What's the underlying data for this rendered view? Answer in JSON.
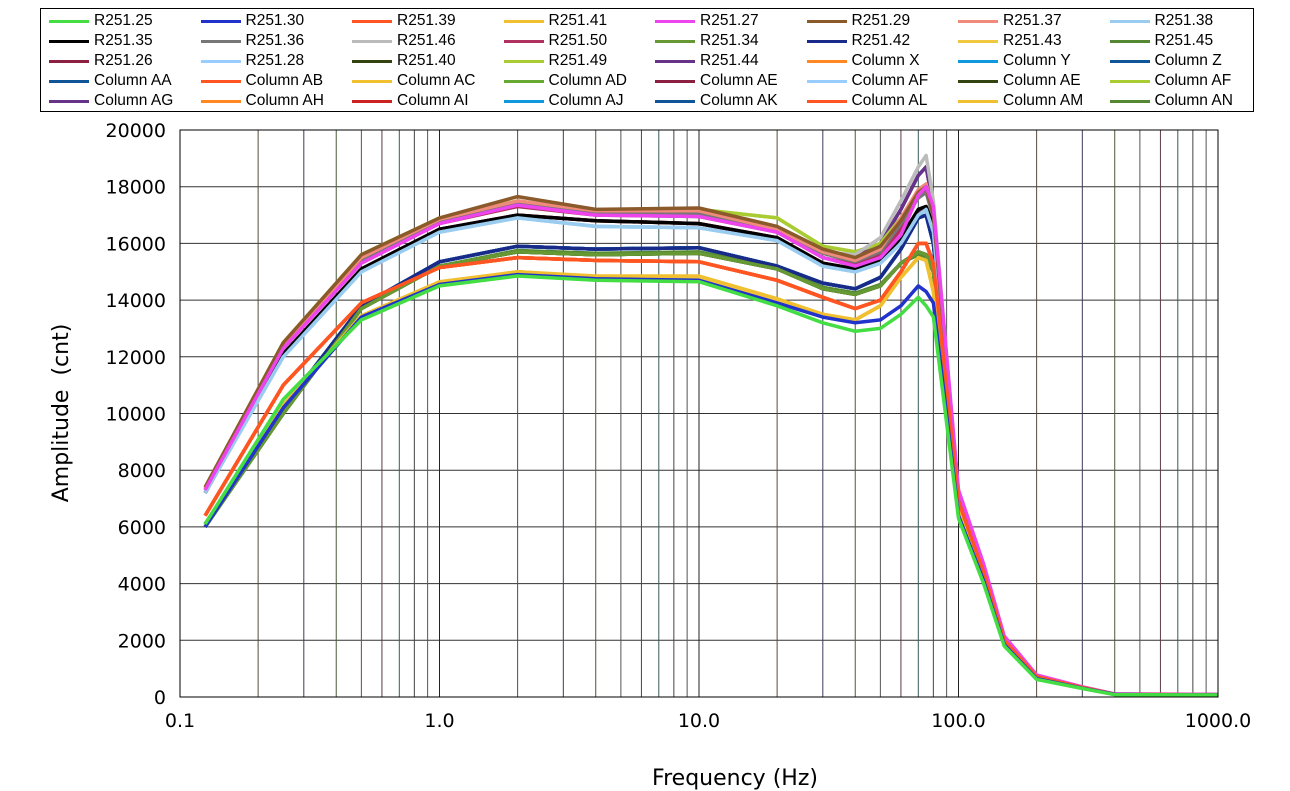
{
  "chart_data": {
    "type": "line",
    "title": "",
    "xlabel": "Frequency (Hz)",
    "ylabel": "Amplitude  (cnt)",
    "xscale": "log",
    "xlim": [
      0.1,
      1000
    ],
    "ylim": [
      0,
      20000
    ],
    "grid": true,
    "legend_position": "top",
    "xticks": [
      "0.1",
      "1.0",
      "10.0",
      "100.0",
      "1000.0"
    ],
    "xtick_values": [
      0.1,
      1,
      10,
      100,
      1000
    ],
    "yticks": [
      "0",
      "2000",
      "4000",
      "6000",
      "8000",
      "10000",
      "12000",
      "14000",
      "16000",
      "18000",
      "20000"
    ],
    "ytick_values": [
      0,
      2000,
      4000,
      6000,
      8000,
      10000,
      12000,
      14000,
      16000,
      18000,
      20000
    ],
    "x": [
      0.125,
      0.25,
      0.5,
      1,
      2,
      4,
      10,
      20,
      30,
      40,
      50,
      60,
      70,
      75,
      80,
      100,
      125,
      150,
      200,
      300,
      400,
      1000
    ],
    "series": [
      {
        "name": "R251.25",
        "color": "#44dd44",
        "values": [
          6100,
          10500,
          13300,
          14500,
          14850,
          14700,
          14650,
          13800,
          13200,
          12900,
          13000,
          13500,
          14100,
          13800,
          13400,
          6300,
          4000,
          1800,
          620,
          300,
          80,
          70
        ]
      },
      {
        "name": "R251.30",
        "color": "#2233cc",
        "values": [
          6000,
          10200,
          13400,
          14550,
          14900,
          14750,
          14700,
          13900,
          13400,
          13200,
          13300,
          13800,
          14500,
          14300,
          13900,
          6400,
          4100,
          1850,
          650,
          310,
          90,
          70
        ]
      },
      {
        "name": "R251.39",
        "color": "#ff5522",
        "values": [
          6400,
          11000,
          13900,
          15150,
          15500,
          15400,
          15350,
          14700,
          14100,
          13700,
          14000,
          15000,
          16000,
          16000,
          15300,
          6900,
          4400,
          2000,
          720,
          340,
          100,
          80
        ]
      },
      {
        "name": "R251.41",
        "color": "#f0c030",
        "values": [
          6100,
          10300,
          13450,
          14650,
          15000,
          14850,
          14850,
          14050,
          13500,
          13300,
          13800,
          14800,
          15500,
          15400,
          14300,
          6600,
          4200,
          1900,
          680,
          320,
          90,
          70
        ]
      },
      {
        "name": "R251.27",
        "color": "#ee44ee",
        "values": [
          7300,
          12300,
          15300,
          16700,
          17350,
          17000,
          16950,
          16400,
          15500,
          15200,
          15500,
          16300,
          17700,
          18000,
          17300,
          7300,
          4700,
          2150,
          780,
          360,
          110,
          90
        ]
      },
      {
        "name": "R251.29",
        "color": "#8b5a2b",
        "values": [
          7400,
          12500,
          15600,
          16900,
          17650,
          17200,
          17250,
          16600,
          15800,
          15500,
          15900,
          16800,
          17800,
          18000,
          17000,
          7000,
          4500,
          2100,
          750,
          350,
          100,
          80
        ]
      },
      {
        "name": "R251.37",
        "color": "#f08a7a",
        "values": [
          7350,
          12400,
          15500,
          16850,
          17500,
          17150,
          17150,
          16500,
          15700,
          15400,
          15800,
          16900,
          17900,
          18100,
          17100,
          7100,
          4550,
          2100,
          750,
          350,
          100,
          80
        ]
      },
      {
        "name": "R251.38",
        "color": "#99ccee",
        "values": [
          7200,
          12000,
          15000,
          16400,
          16900,
          16600,
          16550,
          16100,
          15200,
          15000,
          15300,
          16000,
          17000,
          17200,
          16400,
          7000,
          4500,
          2050,
          740,
          350,
          100,
          80
        ]
      },
      {
        "name": "R251.35",
        "color": "#000000",
        "values": [
          7200,
          12100,
          15100,
          16500,
          17000,
          16800,
          16700,
          16200,
          15300,
          15100,
          15400,
          16200,
          17200,
          17300,
          16600,
          6900,
          4400,
          2000,
          730,
          340,
          100,
          80
        ]
      },
      {
        "name": "R251.36",
        "color": "#777777",
        "values": [
          7300,
          12300,
          15400,
          16750,
          17400,
          17050,
          17050,
          16450,
          15650,
          15350,
          15700,
          16700,
          17600,
          17800,
          16900,
          7000,
          4500,
          2100,
          750,
          350,
          100,
          80
        ]
      },
      {
        "name": "R251.46",
        "color": "#bbbbbb",
        "values": [
          7300,
          12300,
          15400,
          16800,
          17400,
          17100,
          17100,
          16500,
          15700,
          15600,
          16200,
          17500,
          18700,
          19100,
          17500,
          7200,
          4600,
          2100,
          750,
          350,
          100,
          80
        ]
      },
      {
        "name": "R251.50",
        "color": "#b03060",
        "values": [
          7300,
          12300,
          15350,
          16700,
          17300,
          17000,
          16950,
          16400,
          15500,
          15250,
          15600,
          16500,
          17700,
          17900,
          17100,
          7200,
          4600,
          2100,
          760,
          350,
          100,
          80
        ]
      },
      {
        "name": "R251.34",
        "color": "#669933",
        "values": [
          6000,
          10000,
          13700,
          15200,
          15700,
          15600,
          15650,
          15100,
          14400,
          14200,
          14500,
          15300,
          15700,
          15600,
          15000,
          6800,
          4300,
          1950,
          700,
          330,
          100,
          80
        ]
      },
      {
        "name": "R251.42",
        "color": "#1a2a88",
        "values": [
          6100,
          10200,
          13800,
          15350,
          15900,
          15800,
          15850,
          15200,
          14600,
          14400,
          14800,
          15800,
          16900,
          17000,
          16000,
          6900,
          4400,
          2000,
          720,
          340,
          100,
          80
        ]
      },
      {
        "name": "R251.43",
        "color": "#f0c840",
        "values": [
          6100,
          10300,
          13400,
          14600,
          15000,
          14800,
          14800,
          14000,
          13500,
          13300,
          13800,
          14800,
          15500,
          15400,
          14300,
          6600,
          4200,
          1900,
          680,
          320,
          90,
          70
        ]
      },
      {
        "name": "R251.45",
        "color": "#558833",
        "values": [
          6000,
          10000,
          13700,
          15200,
          15750,
          15650,
          15700,
          15150,
          14450,
          14250,
          14550,
          15300,
          15600,
          15500,
          15000,
          6800,
          4300,
          1950,
          700,
          330,
          100,
          80
        ]
      },
      {
        "name": "R251.26",
        "color": "#8b2040",
        "values": [
          7200,
          12100,
          15100,
          16500,
          17000,
          16800,
          16700,
          16200,
          15300,
          15100,
          15400,
          16200,
          17100,
          17200,
          16500,
          6900,
          4400,
          2000,
          730,
          340,
          100,
          80
        ]
      },
      {
        "name": "R251.28",
        "color": "#99ccff",
        "values": [
          7200,
          12000,
          15000,
          16400,
          16900,
          16600,
          16550,
          16100,
          15200,
          15000,
          15300,
          16000,
          17000,
          17200,
          16400,
          7000,
          4500,
          2050,
          740,
          350,
          100,
          80
        ]
      },
      {
        "name": "R251.40",
        "color": "#334411",
        "values": [
          6000,
          10000,
          13700,
          15200,
          15700,
          15600,
          15650,
          15100,
          14400,
          14200,
          14500,
          15300,
          15700,
          15600,
          15000,
          6800,
          4300,
          1950,
          700,
          330,
          100,
          80
        ]
      },
      {
        "name": "R251.49",
        "color": "#aacc33",
        "values": [
          7400,
          12500,
          15600,
          16900,
          17500,
          17100,
          17200,
          16900,
          15900,
          15700,
          16000,
          16900,
          17700,
          17900,
          17000,
          7000,
          4500,
          2100,
          750,
          350,
          100,
          80
        ]
      },
      {
        "name": "R251.44",
        "color": "#663388",
        "values": [
          7300,
          12300,
          15400,
          16800,
          17400,
          17100,
          17100,
          16500,
          15700,
          15500,
          16000,
          17200,
          18400,
          18700,
          17300,
          7100,
          4550,
          2100,
          750,
          350,
          100,
          80
        ]
      },
      {
        "name": "Column X",
        "color": "#ff8822",
        "values": [
          6400,
          11000,
          13900,
          15150,
          15500,
          15400,
          15350,
          14700,
          14100,
          13700,
          14000,
          15000,
          16000,
          16000,
          15300,
          6900,
          4400,
          2000,
          720,
          340,
          100,
          80
        ]
      },
      {
        "name": "Column Y",
        "color": "#1199dd",
        "values": [
          6100,
          10200,
          13800,
          15350,
          15900,
          15800,
          15850,
          15200,
          14600,
          14400,
          14800,
          15800,
          16900,
          17000,
          16000,
          6900,
          4400,
          2000,
          720,
          340,
          100,
          80
        ]
      },
      {
        "name": "Column Z",
        "color": "#115599",
        "values": [
          6100,
          10200,
          13800,
          15350,
          15900,
          15800,
          15850,
          15200,
          14600,
          14400,
          14800,
          15800,
          16900,
          17000,
          16000,
          6900,
          4400,
          2000,
          720,
          340,
          100,
          80
        ]
      },
      {
        "name": "Column AA",
        "color": "#115599",
        "values": [
          6100,
          10200,
          13800,
          15350,
          15900,
          15800,
          15850,
          15200,
          14600,
          14400,
          14800,
          15800,
          16900,
          17000,
          16000,
          6900,
          4400,
          2000,
          720,
          340,
          100,
          80
        ]
      },
      {
        "name": "Column AB",
        "color": "#ff5522",
        "values": [
          6400,
          11000,
          13900,
          15150,
          15500,
          15400,
          15350,
          14700,
          14100,
          13700,
          14000,
          15000,
          16000,
          16000,
          15300,
          6900,
          4400,
          2000,
          720,
          340,
          100,
          80
        ]
      },
      {
        "name": "Column AC",
        "color": "#f0c030",
        "values": [
          6100,
          10300,
          13400,
          14600,
          15000,
          14800,
          14800,
          14000,
          13500,
          13300,
          13800,
          14800,
          15500,
          15400,
          14300,
          6600,
          4200,
          1900,
          680,
          320,
          90,
          70
        ]
      },
      {
        "name": "Column AD",
        "color": "#66aa33",
        "values": [
          6000,
          10000,
          13700,
          15200,
          15700,
          15600,
          15650,
          15100,
          14400,
          14200,
          14500,
          15300,
          15700,
          15600,
          15000,
          6800,
          4300,
          1950,
          700,
          330,
          100,
          80
        ]
      },
      {
        "name": "Column AE",
        "color": "#8b2040",
        "values": [
          7200,
          12100,
          15100,
          16500,
          17000,
          16800,
          16700,
          16200,
          15300,
          15100,
          15400,
          16200,
          17200,
          17300,
          16600,
          6900,
          4400,
          2000,
          730,
          340,
          100,
          80
        ]
      },
      {
        "name": "Column AF",
        "color": "#99ccff",
        "values": [
          7200,
          12000,
          15000,
          16400,
          16900,
          16600,
          16550,
          16100,
          15200,
          15000,
          15300,
          16000,
          17000,
          17200,
          16400,
          7000,
          4500,
          2050,
          740,
          350,
          100,
          80
        ]
      },
      {
        "name": "Column AE",
        "color": "#334411",
        "values": [
          6000,
          10000,
          13700,
          15200,
          15700,
          15600,
          15650,
          15100,
          14400,
          14200,
          14500,
          15300,
          15700,
          15600,
          15000,
          6800,
          4300,
          1950,
          700,
          330,
          100,
          80
        ]
      },
      {
        "name": "Column AF",
        "color": "#aacc33",
        "values": [
          7400,
          12500,
          15600,
          16900,
          17500,
          17100,
          17200,
          16900,
          15900,
          15700,
          16000,
          16900,
          17700,
          17900,
          17000,
          7000,
          4500,
          2100,
          750,
          350,
          100,
          80
        ]
      },
      {
        "name": "Column AG",
        "color": "#663388",
        "values": [
          7300,
          12300,
          15400,
          16800,
          17400,
          17100,
          17100,
          16500,
          15700,
          15500,
          16000,
          17200,
          18400,
          18700,
          17300,
          7100,
          4550,
          2100,
          750,
          350,
          100,
          80
        ]
      },
      {
        "name": "Column AH",
        "color": "#ff8822",
        "values": [
          6100,
          10300,
          13400,
          14600,
          15000,
          14800,
          14800,
          14000,
          13500,
          13300,
          13800,
          14800,
          15500,
          15400,
          14300,
          6600,
          4200,
          1900,
          680,
          320,
          90,
          70
        ]
      },
      {
        "name": "Column AI",
        "color": "#cc2222",
        "values": [
          6400,
          11000,
          13900,
          15150,
          15500,
          15400,
          15350,
          14700,
          14100,
          13700,
          14000,
          15000,
          16000,
          16000,
          15300,
          6900,
          4400,
          2000,
          720,
          340,
          100,
          80
        ]
      },
      {
        "name": "Column AJ",
        "color": "#1199dd",
        "values": [
          6100,
          10200,
          13800,
          15350,
          15900,
          15800,
          15850,
          15200,
          14600,
          14400,
          14800,
          15800,
          16900,
          17000,
          16000,
          6900,
          4400,
          2000,
          720,
          340,
          100,
          80
        ]
      },
      {
        "name": "Column AK",
        "color": "#115599",
        "values": [
          6100,
          10200,
          13800,
          15350,
          15900,
          15800,
          15850,
          15200,
          14600,
          14400,
          14800,
          15800,
          16900,
          17000,
          16000,
          6900,
          4400,
          2000,
          720,
          340,
          100,
          80
        ]
      },
      {
        "name": "Column AL",
        "color": "#ff5522",
        "values": [
          6400,
          11000,
          13900,
          15150,
          15500,
          15400,
          15350,
          14700,
          14100,
          13700,
          14000,
          15000,
          16000,
          16000,
          15300,
          6900,
          4400,
          2000,
          720,
          340,
          100,
          80
        ]
      },
      {
        "name": "Column AM",
        "color": "#f0c030",
        "values": [
          6100,
          10300,
          13400,
          14600,
          15000,
          14800,
          14800,
          14000,
          13500,
          13300,
          13800,
          14800,
          15500,
          15400,
          14300,
          6600,
          4200,
          1900,
          680,
          320,
          90,
          70
        ]
      },
      {
        "name": "Column AN",
        "color": "#558833",
        "values": [
          6000,
          10000,
          13700,
          15200,
          15700,
          15600,
          15650,
          15100,
          14400,
          14200,
          14500,
          15300,
          15700,
          15600,
          15000,
          6800,
          4300,
          1950,
          700,
          330,
          100,
          80
        ]
      }
    ]
  }
}
